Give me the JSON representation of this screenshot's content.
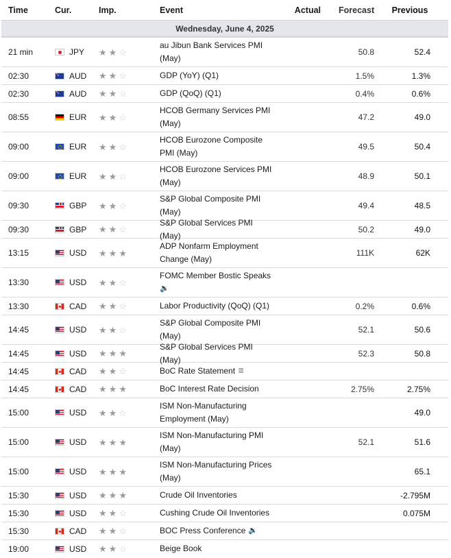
{
  "header": {
    "time": "Time",
    "currency": "Cur.",
    "importance": "Imp.",
    "event": "Event",
    "actual": "Actual",
    "forecast": "Forecast",
    "previous": "Previous"
  },
  "date_label": "Wednesday, June 4, 2025",
  "rows": [
    {
      "time": "21 min",
      "cur": "JPY",
      "flag": "jpy",
      "imp": 2,
      "event": "au Jibun Bank Services PMI (May)",
      "actual": "",
      "forecast": "50.8",
      "previous": "52.4",
      "double": true
    },
    {
      "time": "02:30",
      "cur": "AUD",
      "flag": "aud",
      "imp": 2,
      "event": "GDP (YoY) (Q1)",
      "actual": "",
      "forecast": "1.5%",
      "previous": "1.3%",
      "double": false
    },
    {
      "time": "02:30",
      "cur": "AUD",
      "flag": "aud",
      "imp": 2,
      "event": "GDP (QoQ) (Q1)",
      "actual": "",
      "forecast": "0.4%",
      "previous": "0.6%",
      "double": false
    },
    {
      "time": "08:55",
      "cur": "EUR",
      "flag": "de",
      "imp": 2,
      "event": "HCOB Germany Services PMI (May)",
      "actual": "",
      "forecast": "47.2",
      "previous": "49.0",
      "double": true
    },
    {
      "time": "09:00",
      "cur": "EUR",
      "flag": "eur",
      "imp": 2,
      "event": "HCOB Eurozone Composite PMI (May)",
      "actual": "",
      "forecast": "49.5",
      "previous": "50.4",
      "double": true
    },
    {
      "time": "09:00",
      "cur": "EUR",
      "flag": "eur",
      "imp": 2,
      "event": "HCOB Eurozone Services PMI (May)",
      "actual": "",
      "forecast": "48.9",
      "previous": "50.1",
      "double": true
    },
    {
      "time": "09:30",
      "cur": "GBP",
      "flag": "gbp",
      "imp": 2,
      "event": "S&P Global Composite PMI (May)",
      "actual": "",
      "forecast": "49.4",
      "previous": "48.5",
      "double": true
    },
    {
      "time": "09:30",
      "cur": "GBP",
      "flag": "gbp",
      "imp": 2,
      "event": "S&P Global Services PMI (May)",
      "actual": "",
      "forecast": "50.2",
      "previous": "49.0",
      "double": false
    },
    {
      "time": "13:15",
      "cur": "USD",
      "flag": "usd",
      "imp": 3,
      "event": "ADP Nonfarm Employment Change (May)",
      "actual": "",
      "forecast": "111K",
      "previous": "62K",
      "double": true
    },
    {
      "time": "13:30",
      "cur": "USD",
      "flag": "usd",
      "imp": 2,
      "event": "FOMC Member Bostic Speaks",
      "icon": "speaker-icon",
      "actual": "",
      "forecast": "",
      "previous": "",
      "double": true
    },
    {
      "time": "13:30",
      "cur": "CAD",
      "flag": "cad",
      "imp": 2,
      "event": "Labor Productivity (QoQ) (Q1)",
      "actual": "",
      "forecast": "0.2%",
      "previous": "0.6%",
      "double": false
    },
    {
      "time": "14:45",
      "cur": "USD",
      "flag": "usd",
      "imp": 2,
      "event": "S&P Global Composite PMI (May)",
      "actual": "",
      "forecast": "52.1",
      "previous": "50.6",
      "double": true
    },
    {
      "time": "14:45",
      "cur": "USD",
      "flag": "usd",
      "imp": 3,
      "event": "S&P Global Services PMI (May)",
      "actual": "",
      "forecast": "52.3",
      "previous": "50.8",
      "double": false
    },
    {
      "time": "14:45",
      "cur": "CAD",
      "flag": "cad",
      "imp": 2,
      "event": "BoC Rate Statement",
      "icon": "document-icon",
      "actual": "",
      "forecast": "",
      "previous": "",
      "double": false
    },
    {
      "time": "14:45",
      "cur": "CAD",
      "flag": "cad",
      "imp": 3,
      "event": "BoC Interest Rate Decision",
      "actual": "",
      "forecast": "2.75%",
      "previous": "2.75%",
      "double": false
    },
    {
      "time": "15:00",
      "cur": "USD",
      "flag": "usd",
      "imp": 2,
      "event": "ISM Non-Manufacturing Employment (May)",
      "actual": "",
      "forecast": "",
      "previous": "49.0",
      "double": true
    },
    {
      "time": "15:00",
      "cur": "USD",
      "flag": "usd",
      "imp": 3,
      "event": "ISM Non-Manufacturing PMI (May)",
      "actual": "",
      "forecast": "52.1",
      "previous": "51.6",
      "double": true
    },
    {
      "time": "15:00",
      "cur": "USD",
      "flag": "usd",
      "imp": 3,
      "event": "ISM Non-Manufacturing Prices (May)",
      "actual": "",
      "forecast": "",
      "previous": "65.1",
      "double": true
    },
    {
      "time": "15:30",
      "cur": "USD",
      "flag": "usd",
      "imp": 3,
      "event": "Crude Oil Inventories",
      "actual": "",
      "forecast": "",
      "previous": "-2.795M",
      "double": false
    },
    {
      "time": "15:30",
      "cur": "USD",
      "flag": "usd",
      "imp": 2,
      "event": "Cushing Crude Oil Inventories",
      "actual": "",
      "forecast": "",
      "previous": "0.075M",
      "double": false
    },
    {
      "time": "15:30",
      "cur": "CAD",
      "flag": "cad",
      "imp": 2,
      "event": "BOC Press Conference",
      "icon": "speaker-icon",
      "actual": "",
      "forecast": "",
      "previous": "",
      "double": false
    },
    {
      "time": "19:00",
      "cur": "USD",
      "flag": "usd",
      "imp": 2,
      "event": "Beige Book",
      "actual": "",
      "forecast": "",
      "previous": "",
      "double": false
    }
  ]
}
